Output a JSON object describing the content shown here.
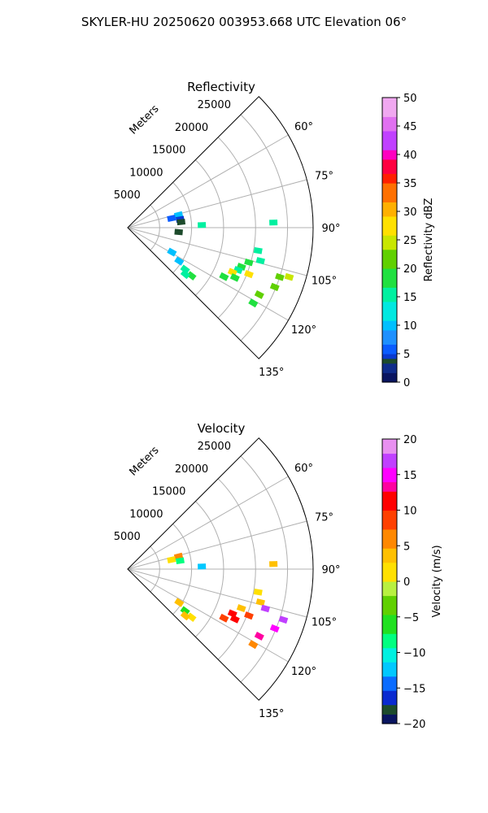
{
  "suptitle": "SKYLER-HU  20250620  003953.668 UTC Elevation 06°",
  "chart_data": [
    {
      "type": "polar-sector-radar",
      "title": "Reflectivity",
      "radial_label": "Meters",
      "r_max": 29000,
      "r_ticks": [
        5000,
        10000,
        15000,
        20000,
        25000
      ],
      "r_tick_labels": [
        "5000",
        "10000",
        "15000",
        "20000",
        "25000"
      ],
      "theta_range_deg": [
        45,
        135
      ],
      "theta_grid_deg": [
        45,
        60,
        75,
        90,
        105,
        120,
        135
      ],
      "theta_tick_labels": [
        {
          "deg": 60,
          "label": "60°"
        },
        {
          "deg": 75,
          "label": "75°"
        },
        {
          "deg": 90,
          "label": "90°"
        },
        {
          "deg": 105,
          "label": "105°"
        },
        {
          "deg": 120,
          "label": "120°"
        },
        {
          "deg": 135,
          "label": "135°"
        }
      ],
      "colorbar": {
        "label": "Reflectivity dBZ",
        "min": 0,
        "max": 50,
        "ticks": [
          0,
          5,
          10,
          15,
          20,
          25,
          30,
          35,
          40,
          45,
          50
        ],
        "tick_labels": [
          "0",
          "5",
          "10",
          "15",
          "20",
          "25",
          "30",
          "35",
          "40",
          "45",
          "50"
        ]
      },
      "echoes": [
        {
          "az": 76,
          "r": 8200,
          "value": 9
        },
        {
          "az": 78,
          "r": 7000,
          "value": 5
        },
        {
          "az": 81,
          "r": 8300,
          "value": 4
        },
        {
          "az": 84,
          "r": 8400,
          "value": 3
        },
        {
          "az": 88,
          "r": 11600,
          "value": 14
        },
        {
          "az": 88,
          "r": 22800,
          "value": 16
        },
        {
          "az": 95,
          "r": 8000,
          "value": 3
        },
        {
          "az": 100,
          "r": 20700,
          "value": 16
        },
        {
          "az": 104,
          "r": 21400,
          "value": 15
        },
        {
          "az": 106,
          "r": 19700,
          "value": 19
        },
        {
          "az": 107,
          "r": 26400,
          "value": 24
        },
        {
          "az": 108,
          "r": 25000,
          "value": 20
        },
        {
          "az": 109,
          "r": 18800,
          "value": 17
        },
        {
          "az": 111,
          "r": 18500,
          "value": 15
        },
        {
          "az": 111,
          "r": 20300,
          "value": 27
        },
        {
          "az": 112,
          "r": 24800,
          "value": 20
        },
        {
          "az": 113,
          "r": 17800,
          "value": 26
        },
        {
          "az": 115,
          "r": 18500,
          "value": 17
        },
        {
          "az": 117,
          "r": 16900,
          "value": 18
        },
        {
          "az": 117,
          "r": 23100,
          "value": 20
        },
        {
          "az": 119,
          "r": 7900,
          "value": 10
        },
        {
          "az": 121,
          "r": 22900,
          "value": 19
        },
        {
          "az": 123,
          "r": 9600,
          "value": 10
        },
        {
          "az": 126,
          "r": 11100,
          "value": 16
        },
        {
          "az": 127,
          "r": 12500,
          "value": 18
        },
        {
          "az": 129,
          "r": 11600,
          "value": 16
        }
      ]
    },
    {
      "type": "polar-sector-radar",
      "title": "Velocity",
      "radial_label": "Meters",
      "r_max": 29000,
      "r_ticks": [
        5000,
        10000,
        15000,
        20000,
        25000
      ],
      "r_tick_labels": [
        "5000",
        "10000",
        "15000",
        "20000",
        "25000"
      ],
      "theta_range_deg": [
        45,
        135
      ],
      "theta_grid_deg": [
        45,
        60,
        75,
        90,
        105,
        120,
        135
      ],
      "theta_tick_labels": [
        {
          "deg": 60,
          "label": "60°"
        },
        {
          "deg": 75,
          "label": "75°"
        },
        {
          "deg": 90,
          "label": "90°"
        },
        {
          "deg": 105,
          "label": "105°"
        },
        {
          "deg": 120,
          "label": "120°"
        },
        {
          "deg": 135,
          "label": "135°"
        }
      ],
      "colorbar": {
        "label": "Velocity (m/s)",
        "min": -20,
        "max": 20,
        "ticks": [
          -20,
          -15,
          -10,
          -5,
          0,
          5,
          10,
          15,
          20
        ],
        "tick_labels": [
          "−20",
          "−15",
          "−10",
          "−5",
          "0",
          "5",
          "10",
          "15",
          "20"
        ]
      },
      "echoes": [
        {
          "az": 76,
          "r": 8200,
          "value": 6
        },
        {
          "az": 78,
          "r": 7000,
          "value": 2
        },
        {
          "az": 81,
          "r": 8300,
          "value": -8
        },
        {
          "az": 88,
          "r": 11600,
          "value": -12
        },
        {
          "az": 88,
          "r": 22800,
          "value": 3
        },
        {
          "az": 100,
          "r": 20700,
          "value": 1
        },
        {
          "az": 104,
          "r": 21400,
          "value": 3
        },
        {
          "az": 106,
          "r": 22400,
          "value": 17
        },
        {
          "az": 108,
          "r": 25600,
          "value": 16
        },
        {
          "az": 109,
          "r": 18800,
          "value": 4
        },
        {
          "az": 111,
          "r": 20300,
          "value": 9
        },
        {
          "az": 112,
          "r": 24800,
          "value": 15
        },
        {
          "az": 113,
          "r": 17800,
          "value": 12
        },
        {
          "az": 115,
          "r": 18500,
          "value": 10
        },
        {
          "az": 117,
          "r": 16900,
          "value": 9
        },
        {
          "az": 117,
          "r": 23100,
          "value": 13
        },
        {
          "az": 121,
          "r": 22900,
          "value": 7
        },
        {
          "az": 123,
          "r": 9600,
          "value": 4
        },
        {
          "az": 126,
          "r": 11100,
          "value": -6
        },
        {
          "az": 127,
          "r": 12500,
          "value": 2
        },
        {
          "az": 129,
          "r": 11600,
          "value": 3
        }
      ]
    }
  ]
}
